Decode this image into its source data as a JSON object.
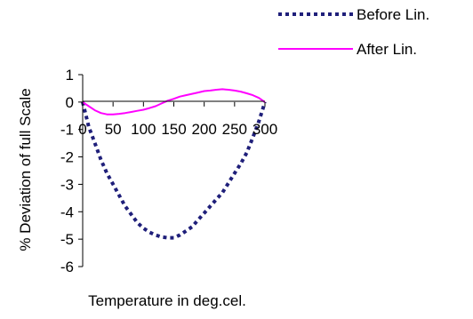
{
  "chart_data": {
    "type": "line",
    "title": "",
    "xlabel": "Temperature in deg.cel.",
    "ylabel": "% Deviation of full Scale",
    "xlim": [
      0,
      300
    ],
    "ylim": [
      -6,
      1
    ],
    "x_ticks": [
      0,
      50,
      100,
      150,
      200,
      250,
      300
    ],
    "y_ticks": [
      1,
      0,
      -1,
      -2,
      -3,
      -4,
      -5,
      -6
    ],
    "grid": false,
    "legend_position": "top-right",
    "series": [
      {
        "name": "Before Lin.",
        "color": "#1f1f7a",
        "style": "dotted",
        "x": [
          0,
          10,
          20,
          30,
          40,
          50,
          60,
          70,
          80,
          90,
          100,
          110,
          120,
          130,
          140,
          150,
          160,
          170,
          180,
          190,
          200,
          210,
          220,
          230,
          240,
          250,
          260,
          270,
          280,
          290,
          300
        ],
        "y": [
          0,
          -0.9,
          -1.5,
          -2.1,
          -2.6,
          -3.0,
          -3.4,
          -3.8,
          -4.1,
          -4.4,
          -4.6,
          -4.75,
          -4.85,
          -4.92,
          -4.95,
          -4.95,
          -4.85,
          -4.7,
          -4.55,
          -4.3,
          -4.05,
          -3.8,
          -3.55,
          -3.3,
          -2.95,
          -2.6,
          -2.25,
          -1.85,
          -1.3,
          -0.7,
          0
        ]
      },
      {
        "name": "After Lin.",
        "color": "#ff00ff",
        "style": "solid",
        "x": [
          0,
          10,
          20,
          30,
          40,
          50,
          60,
          70,
          80,
          90,
          100,
          110,
          120,
          130,
          140,
          150,
          160,
          170,
          180,
          190,
          200,
          210,
          220,
          230,
          240,
          250,
          260,
          270,
          280,
          290,
          300
        ],
        "y": [
          0,
          -0.15,
          -0.3,
          -0.4,
          -0.45,
          -0.45,
          -0.43,
          -0.4,
          -0.36,
          -0.32,
          -0.28,
          -0.22,
          -0.15,
          -0.05,
          0.05,
          0.12,
          0.2,
          0.25,
          0.3,
          0.35,
          0.4,
          0.42,
          0.45,
          0.47,
          0.45,
          0.42,
          0.38,
          0.32,
          0.25,
          0.15,
          0
        ]
      }
    ]
  }
}
